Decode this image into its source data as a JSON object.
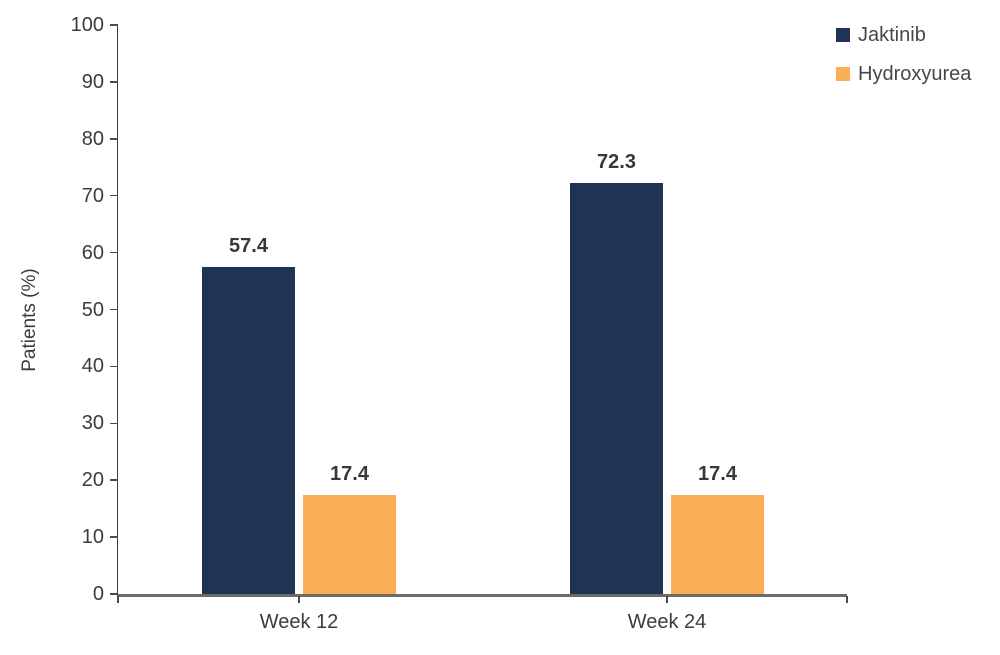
{
  "chart_data": {
    "type": "bar",
    "title": "",
    "xlabel": "",
    "ylabel": "Patients (%)",
    "categories": [
      "Week 12",
      "Week 24"
    ],
    "series": [
      {
        "name": "Jaktinib",
        "color": "#1f3355",
        "values": [
          57.4,
          72.3
        ]
      },
      {
        "name": "Hydroxyurea",
        "color": "#fbaf55",
        "values": [
          17.4,
          17.4
        ]
      }
    ],
    "ylim": [
      0,
      100
    ],
    "yticks": [
      0,
      10,
      20,
      30,
      40,
      50,
      60,
      70,
      80,
      90,
      100
    ],
    "grid": false,
    "legend_position": "top-right",
    "bar_value_labels": true,
    "axis_color": "#6b6b6b",
    "text_color": "#3c3c3c"
  }
}
